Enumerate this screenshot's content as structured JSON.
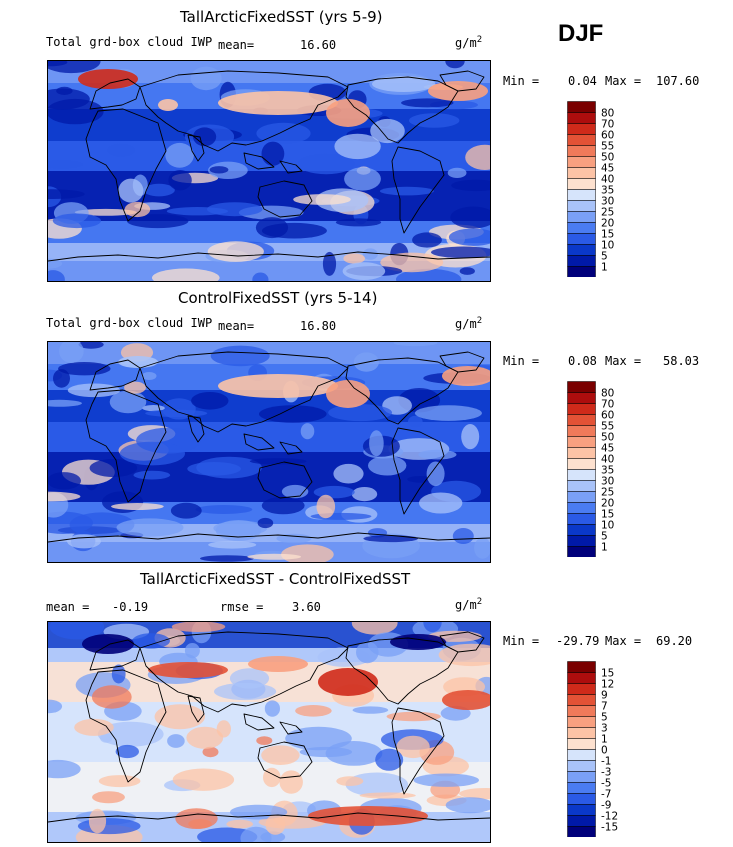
{
  "season": "DJF",
  "colors": {
    "bins_pos": [
      "#00007a",
      "#0019a8",
      "#0a38c9",
      "#2a5ae6",
      "#4a7cf2",
      "#7aa0f6",
      "#a9c3f9",
      "#d6e4fb",
      "#f3f3f3",
      "#fde1cf",
      "#fcc3a6",
      "#f8a080",
      "#f07a5a",
      "#e35236",
      "#cf2a1a",
      "#ad0d0d",
      "#7a0000"
    ],
    "land_outline": "#000000"
  },
  "chart_data": [
    {
      "type": "heatmap",
      "title": "TallArcticFixedSST (yrs 5-9)",
      "variable": "Total grd-box cloud IWP",
      "mean_label": "mean=",
      "mean": "16.60",
      "units": "g/m",
      "units_exp": "2",
      "min_label": "Min =",
      "min": "0.04",
      "max_label": "Max =",
      "max": "107.60",
      "colorbar_levels": [
        "80",
        "70",
        "60",
        "55",
        "50",
        "45",
        "40",
        "35",
        "30",
        "25",
        "20",
        "15",
        "10",
        "5",
        "1"
      ]
    },
    {
      "type": "heatmap",
      "title": "ControlFixedSST (yrs 5-14)",
      "variable": "Total grd-box cloud IWP",
      "mean_label": "mean=",
      "mean": "16.80",
      "units": "g/m",
      "units_exp": "2",
      "min_label": "Min =",
      "min": "0.08",
      "max_label": "Max =",
      "max": "58.03",
      "colorbar_levels": [
        "80",
        "70",
        "60",
        "55",
        "50",
        "45",
        "40",
        "35",
        "30",
        "25",
        "20",
        "15",
        "10",
        "5",
        "1"
      ]
    },
    {
      "type": "heatmap",
      "title": "TallArcticFixedSST - ControlFixedSST",
      "mean_label": "mean =",
      "mean": "-0.19",
      "rmse_label": "rmse =",
      "rmse": "3.60",
      "units": "g/m",
      "units_exp": "2",
      "min_label": "Min =",
      "min": "-29.79",
      "max_label": "Max =",
      "max": "69.20",
      "colorbar_levels": [
        "15",
        "12",
        "9",
        "7",
        "5",
        "3",
        "1",
        "0",
        "-1",
        "-3",
        "-5",
        "-7",
        "-9",
        "-12",
        "-15"
      ]
    }
  ]
}
